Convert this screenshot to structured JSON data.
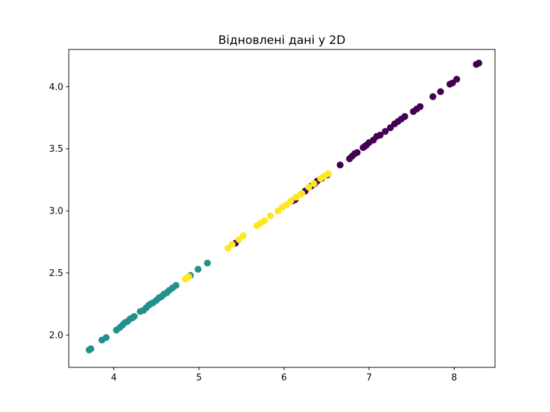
{
  "chart_data": {
    "type": "scatter",
    "title": "Відновлені дані у 2D",
    "xlabel": "",
    "ylabel": "",
    "xlim": [
      3.47,
      8.48
    ],
    "ylim": [
      1.74,
      4.3
    ],
    "xticks": [
      4,
      5,
      6,
      7,
      8
    ],
    "yticks": [
      2.0,
      2.5,
      3.0,
      3.5,
      4.0
    ],
    "xtick_labels": [
      "4",
      "5",
      "6",
      "7",
      "8"
    ],
    "ytick_labels": [
      "2.0",
      "2.5",
      "3.0",
      "3.5",
      "4.0"
    ],
    "grid": false,
    "legend": "none",
    "colors": {
      "purple": "#440154",
      "teal": "#21918c",
      "yellow": "#fde725"
    },
    "series": [
      {
        "color": "#440154",
        "x": [
          5.43,
          6.1,
          6.13,
          6.25,
          6.32,
          6.36,
          6.39,
          6.44,
          6.51,
          6.66,
          6.77,
          6.8,
          6.83,
          6.86,
          6.93,
          6.95,
          6.97,
          7.0,
          7.05,
          7.09,
          7.13,
          7.19,
          7.25,
          7.3,
          7.34,
          7.38,
          7.42,
          7.52,
          7.56,
          7.6,
          7.75,
          7.84,
          7.95,
          7.98,
          8.03,
          8.26,
          8.29
        ],
        "y": [
          2.74,
          3.08,
          3.09,
          3.16,
          3.2,
          3.22,
          3.24,
          3.26,
          3.29,
          3.37,
          3.42,
          3.44,
          3.46,
          3.47,
          3.51,
          3.52,
          3.53,
          3.55,
          3.57,
          3.6,
          3.61,
          3.64,
          3.67,
          3.7,
          3.72,
          3.74,
          3.76,
          3.8,
          3.82,
          3.84,
          3.92,
          3.96,
          4.02,
          4.03,
          4.06,
          4.18,
          4.19
        ]
      },
      {
        "color": "#21918c",
        "x": [
          3.71,
          3.73,
          3.86,
          3.91,
          4.03,
          4.07,
          4.1,
          4.13,
          4.16,
          4.19,
          4.22,
          4.24,
          4.31,
          4.35,
          4.38,
          4.41,
          4.43,
          4.46,
          4.5,
          4.53,
          4.56,
          4.59,
          4.62,
          4.65,
          4.69,
          4.73,
          4.9,
          4.99,
          5.1
        ],
        "y": [
          1.88,
          1.89,
          1.96,
          1.98,
          2.04,
          2.06,
          2.08,
          2.1,
          2.11,
          2.13,
          2.14,
          2.15,
          2.19,
          2.2,
          2.22,
          2.24,
          2.25,
          2.26,
          2.28,
          2.3,
          2.31,
          2.33,
          2.34,
          2.36,
          2.38,
          2.4,
          2.48,
          2.53,
          2.58
        ]
      },
      {
        "color": "#fde725",
        "x": [
          4.84,
          4.86,
          4.88,
          5.34,
          5.39,
          5.47,
          5.52,
          5.68,
          5.72,
          5.77,
          5.84,
          5.93,
          5.98,
          6.03,
          6.08,
          6.14,
          6.19,
          6.21,
          6.29,
          6.35,
          6.43,
          6.47,
          6.52
        ],
        "y": [
          2.45,
          2.46,
          2.47,
          2.7,
          2.73,
          2.77,
          2.8,
          2.88,
          2.9,
          2.92,
          2.96,
          3.0,
          3.03,
          3.05,
          3.08,
          3.11,
          3.13,
          3.14,
          3.19,
          3.22,
          3.26,
          3.28,
          3.3
        ]
      }
    ]
  }
}
